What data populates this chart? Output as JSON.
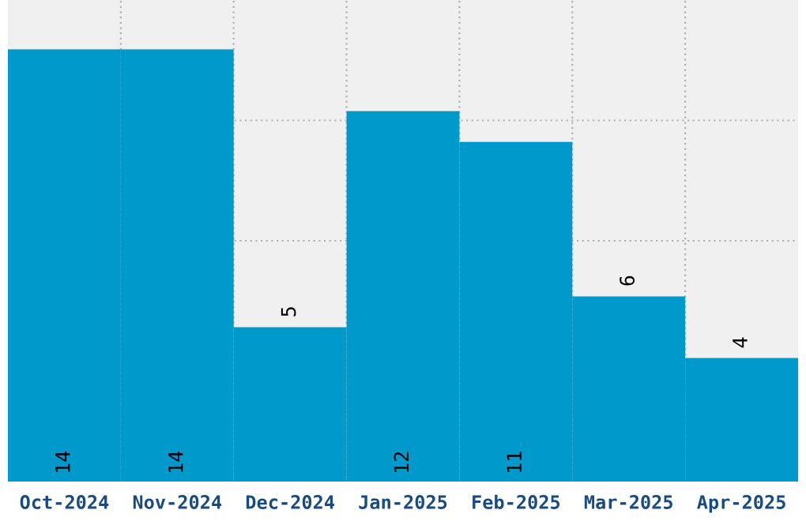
{
  "chart_data": {
    "type": "bar",
    "categories": [
      "Oct-2024",
      "Nov-2024",
      "Dec-2024",
      "Jan-2025",
      "Feb-2025",
      "Mar-2025",
      "Apr-2025"
    ],
    "values": [
      14,
      14,
      5,
      12,
      11,
      6,
      4
    ],
    "color": "#0099cc",
    "ylim": [
      0,
      15.6
    ],
    "yticks": [
      {
        "value": 3.9,
        "label": null
      },
      {
        "value": 7.8,
        "label": null
      },
      {
        "value": 11.7,
        "label": null
      }
    ],
    "tick_labels": "x",
    "grid": true,
    "data_labels": true
  }
}
